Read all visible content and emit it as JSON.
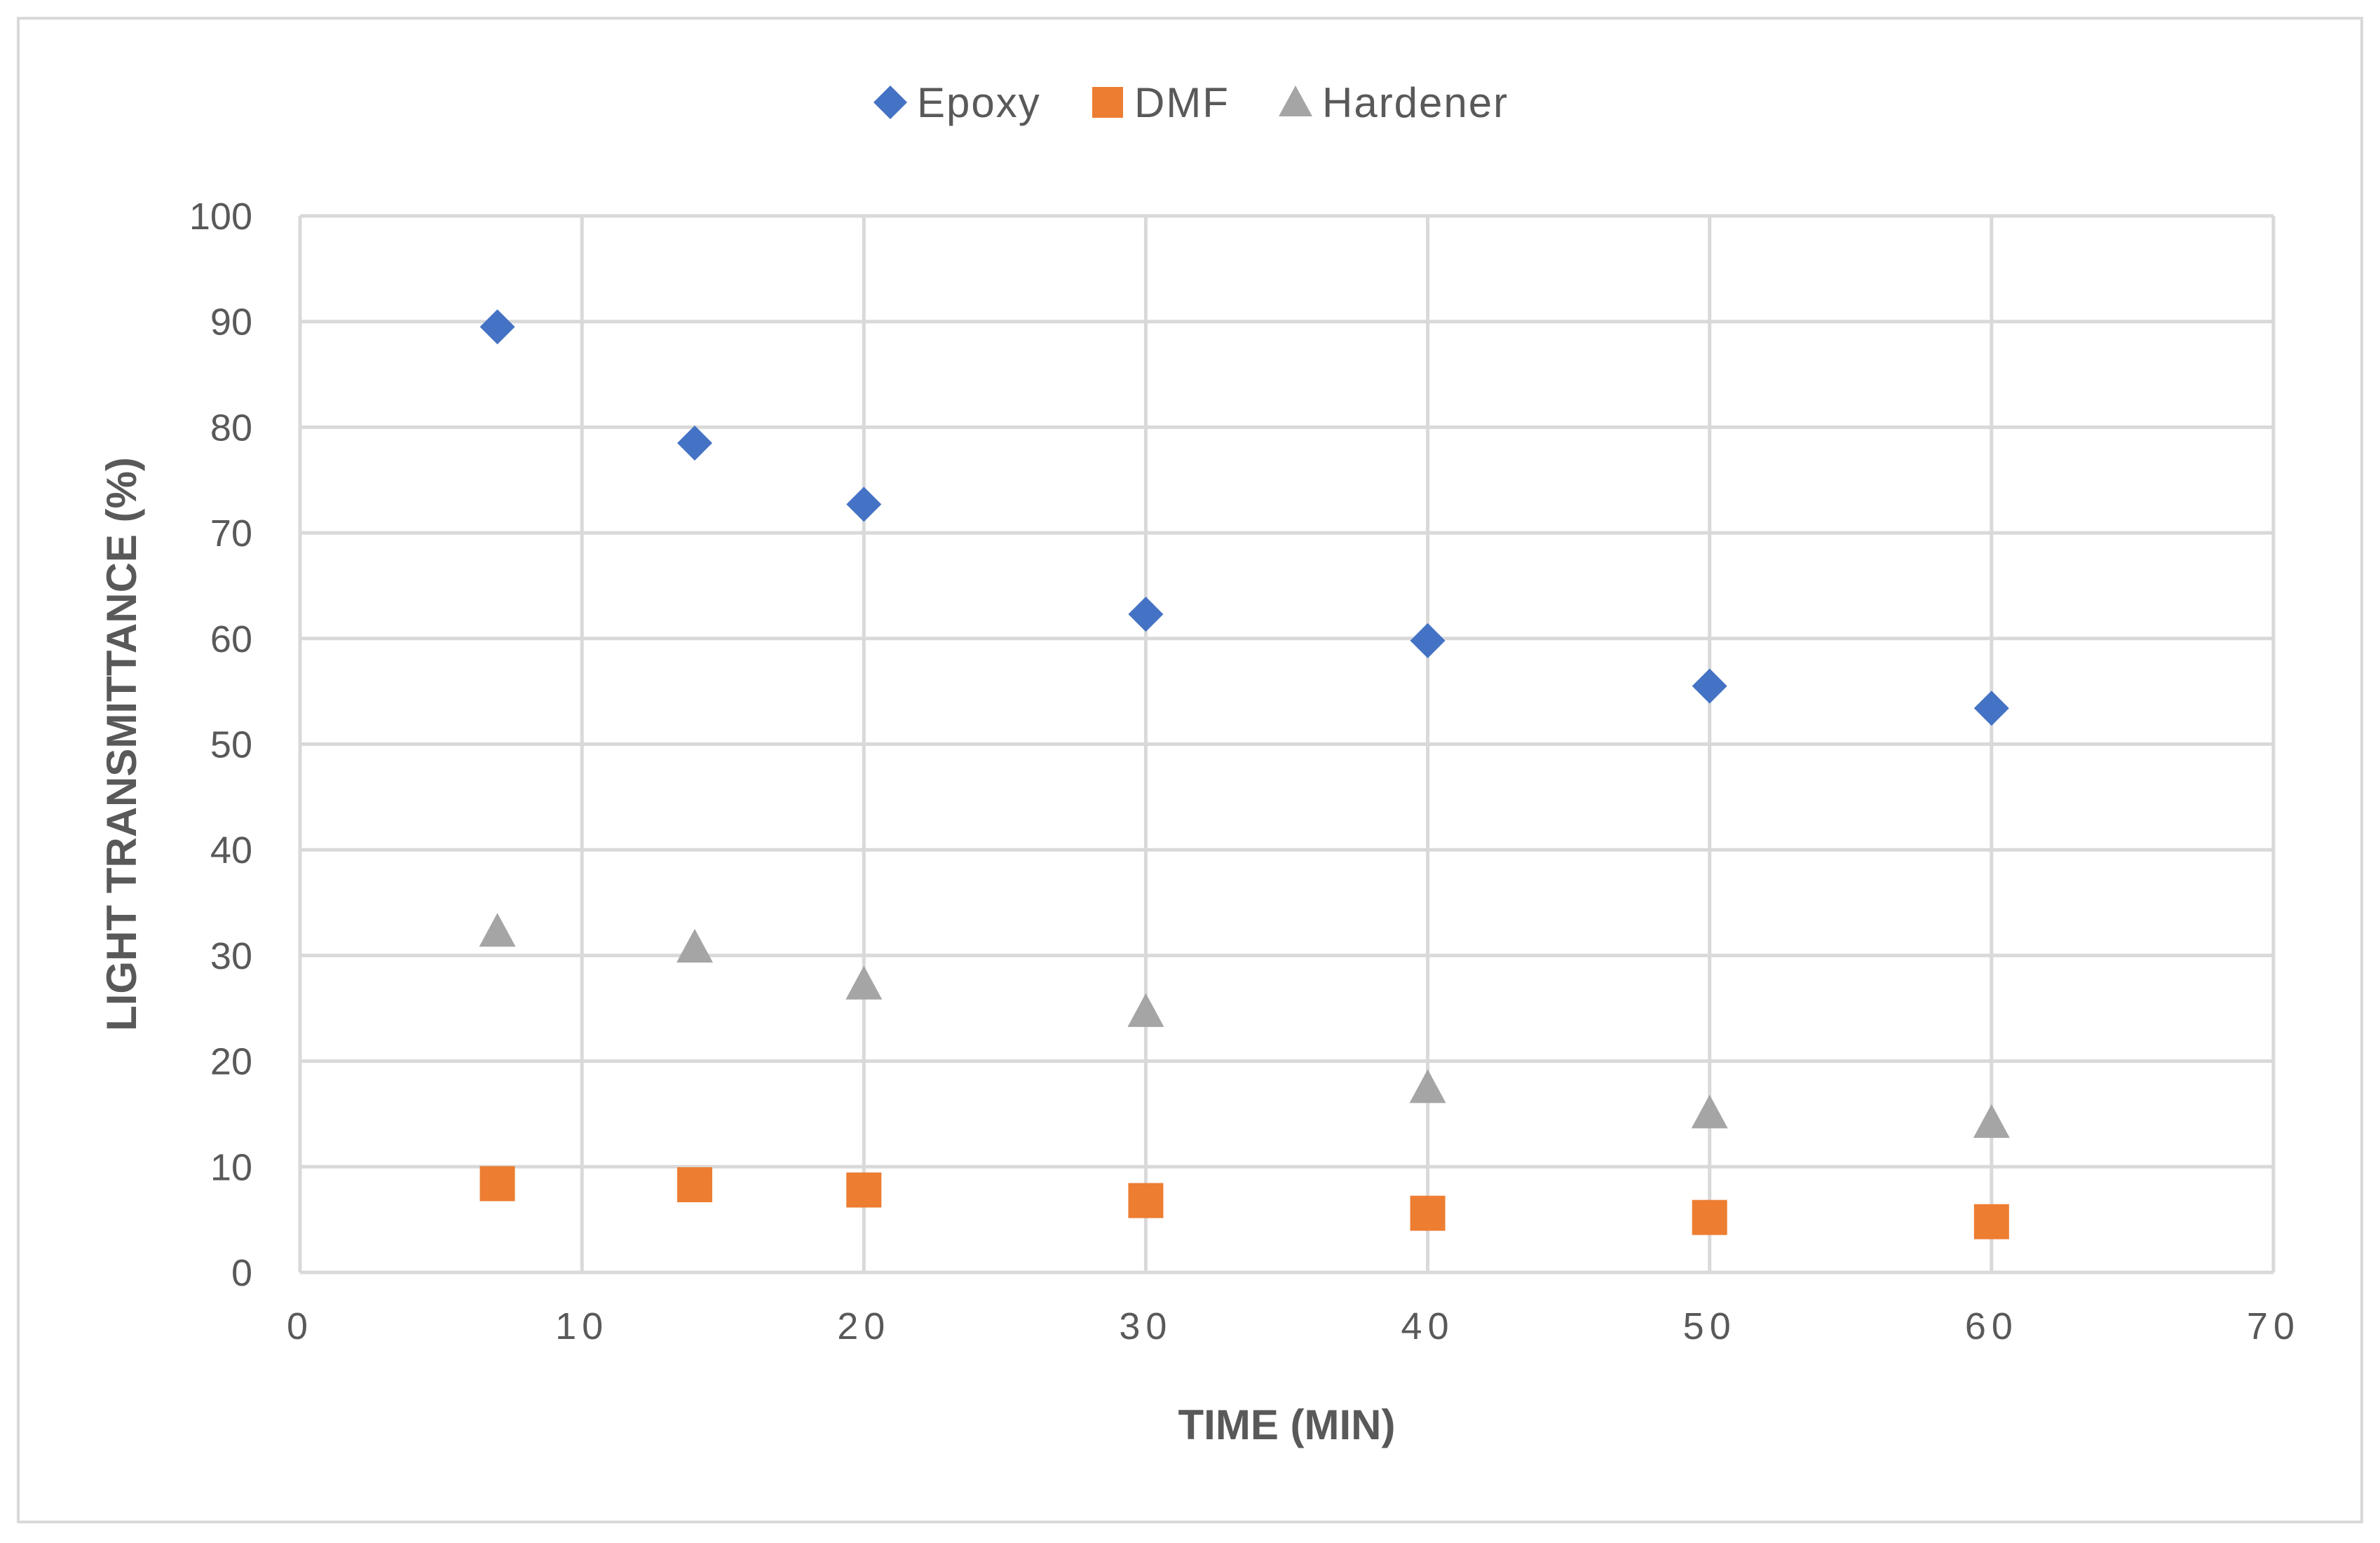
{
  "chart_data": {
    "type": "scatter",
    "title": "",
    "xlabel": "TIME (MIN)",
    "ylabel": "LIGHT TRANSMITTANCE (%)",
    "xlim": [
      0,
      70
    ],
    "ylim": [
      0,
      100
    ],
    "xticks": [
      0,
      10,
      20,
      30,
      40,
      50,
      60,
      70
    ],
    "yticks": [
      0,
      10,
      20,
      30,
      40,
      50,
      60,
      70,
      80,
      90,
      100
    ],
    "grid": true,
    "legend_position": "top-center",
    "series": [
      {
        "name": "Epoxy",
        "marker": "diamond",
        "color": "#4472c4",
        "x": [
          7,
          14,
          20,
          30,
          40,
          50,
          60
        ],
        "y": [
          89.5,
          78.5,
          72.7,
          62.3,
          59.8,
          55.5,
          53.4
        ]
      },
      {
        "name": "DMF",
        "marker": "square",
        "color": "#ed7d31",
        "x": [
          7,
          14,
          20,
          30,
          40,
          50,
          60
        ],
        "y": [
          8.4,
          8.3,
          7.8,
          6.8,
          5.6,
          5.2,
          4.8
        ]
      },
      {
        "name": "Hardener",
        "marker": "triangle",
        "color": "#a5a5a5",
        "x": [
          7,
          14,
          20,
          30,
          40,
          50,
          60
        ],
        "y": [
          32.3,
          30.8,
          27.3,
          24.7,
          17.5,
          15.1,
          14.2
        ]
      }
    ]
  }
}
